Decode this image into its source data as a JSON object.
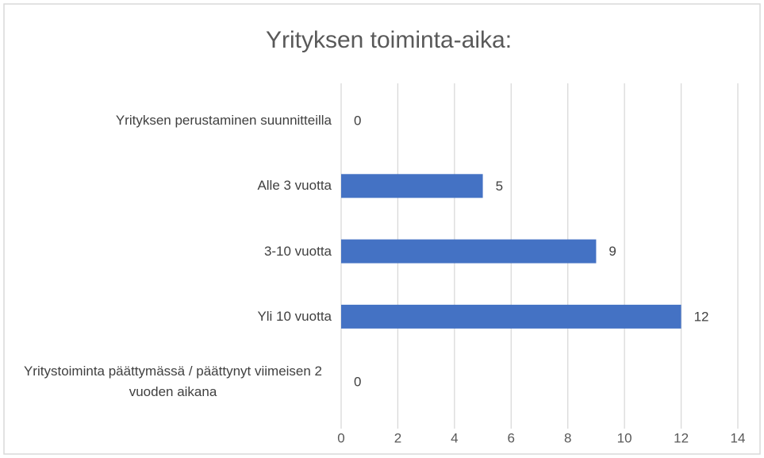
{
  "chart_data": {
    "type": "bar",
    "orientation": "horizontal",
    "title": "Yrityksen toiminta-aika:",
    "categories": [
      "Yrityksen perustaminen suunnitteilla",
      "Alle 3 vuotta",
      "3-10 vuotta",
      "Yli 10 vuotta",
      "Yritystoiminta päättymässä / päättynyt viimeisen 2 vuoden aikana"
    ],
    "values": [
      0,
      5,
      9,
      12,
      0
    ],
    "color": "#4472c4",
    "xlim": [
      0,
      14
    ],
    "xticks": [
      0,
      2,
      4,
      6,
      8,
      10,
      12,
      14
    ],
    "grid": true
  }
}
